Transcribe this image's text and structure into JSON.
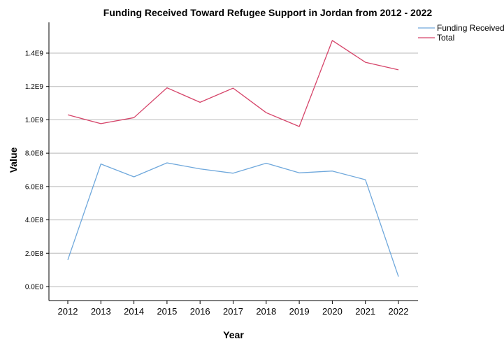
{
  "chart_data": {
    "type": "line",
    "title": "Funding Received Toward Refugee Support in Jordan from 2012 - 2022",
    "xlabel": "Year",
    "ylabel": "Value",
    "categories": [
      "2012",
      "2013",
      "2014",
      "2015",
      "2016",
      "2017",
      "2018",
      "2019",
      "2020",
      "2021",
      "2022"
    ],
    "y_ticks": [
      0,
      200000000,
      400000000,
      600000000,
      800000000,
      1000000000,
      1200000000,
      1400000000
    ],
    "y_tick_labels": [
      "0.0E0",
      "2.0E8",
      "4.0E8",
      "6.0E8",
      "8.0E8",
      "1.0E9",
      "1.2E9",
      "1.4E9"
    ],
    "ylim": [
      -100000000,
      1600000000
    ],
    "grid": true,
    "legend_position": "top-right",
    "series": [
      {
        "name": "Funding Received",
        "color": "#6fa8dc",
        "values": [
          160000000,
          735000000,
          658000000,
          742000000,
          706000000,
          680000000,
          740000000,
          682000000,
          693000000,
          641000000,
          60000000
        ]
      },
      {
        "name": "Total",
        "color": "#d6456a",
        "values": [
          1030000000,
          977000000,
          1013000000,
          1192000000,
          1105000000,
          1190000000,
          1043000000,
          960000000,
          1476000000,
          1345000000,
          1300000000
        ]
      }
    ]
  }
}
